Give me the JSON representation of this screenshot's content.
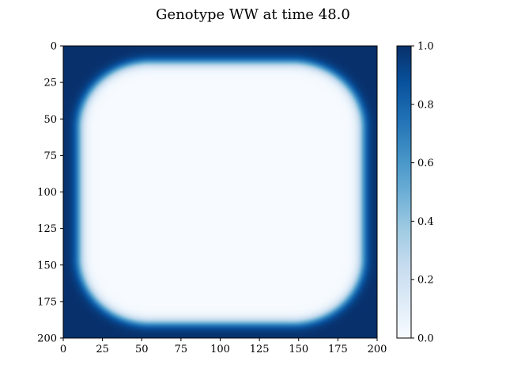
{
  "chart_data": {
    "type": "heatmap",
    "title": "Genotype WW at time 48.0",
    "xlabel": "",
    "ylabel": "",
    "x_ticks": [
      "0",
      "25",
      "50",
      "75",
      "100",
      "125",
      "150",
      "175",
      "200"
    ],
    "y_ticks": [
      "0",
      "25",
      "50",
      "75",
      "100",
      "125",
      "150",
      "175",
      "200"
    ],
    "xlim": [
      0,
      200
    ],
    "ylim": [
      200,
      0
    ],
    "y_axis_inverted": true,
    "grid": false,
    "colormap": "Blues",
    "colorbar": {
      "ticks": [
        "0.0",
        "0.2",
        "0.4",
        "0.6",
        "0.8",
        "1.0"
      ],
      "range": [
        0.0,
        1.0
      ]
    },
    "field_summary": {
      "outside_value": 1.0,
      "inside_value": 0.0,
      "region_x_extent": [
        10,
        191
      ],
      "region_y_extent": [
        11,
        190
      ],
      "region_shape": "rounded square",
      "corner_radius": 45,
      "transition_width": 4
    },
    "colors": {
      "low": "#f7fbff",
      "high": "#08306b"
    }
  }
}
